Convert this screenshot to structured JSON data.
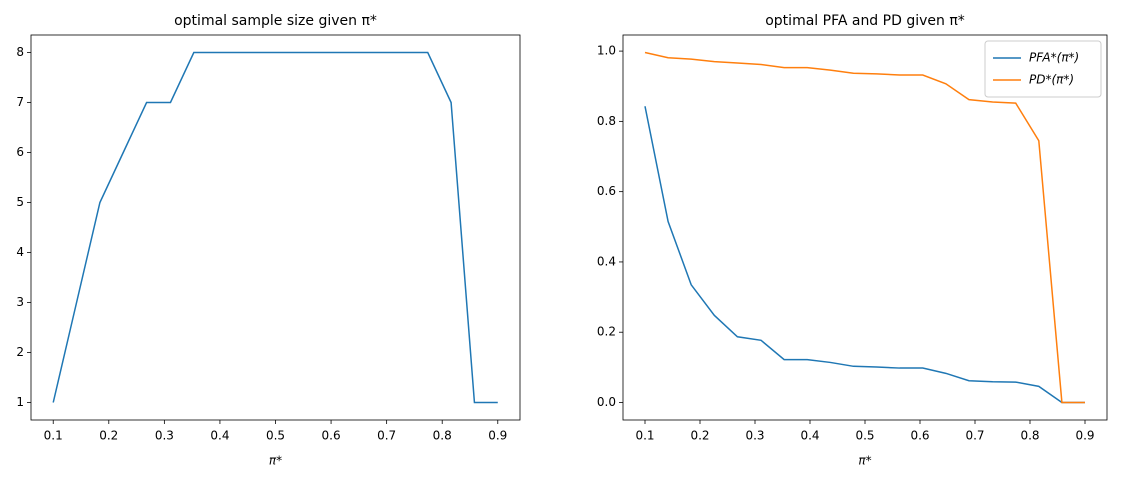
{
  "chart_data": [
    {
      "type": "line",
      "title": "optimal sample size given π*",
      "x_label": "π*",
      "x": [
        0.1,
        0.142,
        0.184,
        0.226,
        0.268,
        0.311,
        0.353,
        0.395,
        0.437,
        0.479,
        0.521,
        0.563,
        0.605,
        0.647,
        0.689,
        0.732,
        0.774,
        0.816,
        0.858,
        0.9
      ],
      "series": [
        {
          "color": "#1f77b4",
          "values": [
            1,
            3,
            5,
            6,
            7,
            7,
            8,
            8,
            8,
            8,
            8,
            8,
            8,
            8,
            8,
            8,
            8,
            7,
            1,
            1
          ]
        }
      ],
      "xlim": [
        0.06,
        0.94
      ],
      "xticks": [
        0.1,
        0.2,
        0.3,
        0.4,
        0.5,
        0.6,
        0.7,
        0.8,
        0.9
      ],
      "ylim": [
        0.65,
        8.35
      ],
      "yticks": [
        1,
        2,
        3,
        4,
        5,
        6,
        7,
        8
      ]
    },
    {
      "type": "line",
      "title": "optimal PFA and PD given π*",
      "x_label": "π*",
      "legend": "upper right",
      "x": [
        0.1,
        0.142,
        0.184,
        0.226,
        0.268,
        0.311,
        0.353,
        0.395,
        0.437,
        0.479,
        0.521,
        0.563,
        0.605,
        0.647,
        0.689,
        0.732,
        0.774,
        0.816,
        0.858,
        0.9
      ],
      "series": [
        {
          "name": "PFA*(π*)",
          "color": "#1f77b4",
          "values": [
            0.843,
            0.515,
            0.335,
            0.248,
            0.187,
            0.177,
            0.122,
            0.122,
            0.114,
            0.103,
            0.101,
            0.098,
            0.098,
            0.083,
            0.062,
            0.059,
            0.058,
            0.046,
            0.0,
            0.0
          ]
        },
        {
          "name": "PD*(π*)",
          "color": "#ff7f0e",
          "values": [
            0.996,
            0.981,
            0.977,
            0.97,
            0.966,
            0.962,
            0.953,
            0.953,
            0.946,
            0.937,
            0.935,
            0.932,
            0.932,
            0.907,
            0.862,
            0.855,
            0.852,
            0.745,
            0.0,
            0.0
          ]
        }
      ],
      "xlim": [
        0.06,
        0.94
      ],
      "xticks": [
        0.1,
        0.2,
        0.3,
        0.4,
        0.5,
        0.6,
        0.7,
        0.8,
        0.9
      ],
      "ylim": [
        -0.0498,
        1.0458
      ],
      "yticks": [
        {
          "value": 0,
          "label": "0.0"
        },
        0.2,
        0.4,
        0.6,
        0.8,
        {
          "value": 1,
          "label": "1.0"
        }
      ]
    }
  ]
}
